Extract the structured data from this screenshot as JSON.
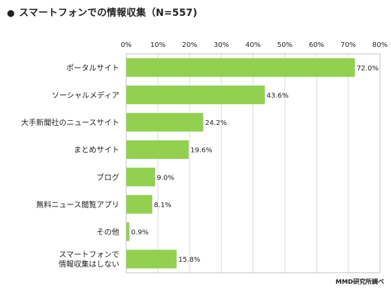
{
  "title": "スマートフォンでの情報収集（N=557)",
  "title_bullet": "●",
  "source": "MMD研究所調べ",
  "chart_data": {
    "type": "bar",
    "orientation": "horizontal",
    "title": "スマートフォンでの情報収集（N=557)",
    "categories": [
      "ポータルサイト",
      "ソーシャルメディア",
      "大手新聞社のニュースサイト",
      "まとめサイト",
      "ブログ",
      "無料ニュース閲覧アプリ",
      "その他",
      "スマートフォンで\n情報収集はしない"
    ],
    "values": [
      72.0,
      43.6,
      24.2,
      19.6,
      9.0,
      8.1,
      0.9,
      15.8
    ],
    "value_labels": [
      "72.0%",
      "43.6%",
      "24.2%",
      "19.6%",
      "9.0%",
      "8.1%",
      "0.9%",
      "15.8%"
    ],
    "xlim": [
      0,
      80
    ],
    "ticks": [
      0,
      10,
      20,
      30,
      40,
      50,
      60,
      70,
      80
    ],
    "tick_labels": [
      "0%",
      "10%",
      "20%",
      "30%",
      "40%",
      "50%",
      "60%",
      "70%",
      "80%"
    ],
    "axis_position": "top",
    "grid": true,
    "bar_color": "#92d050"
  }
}
